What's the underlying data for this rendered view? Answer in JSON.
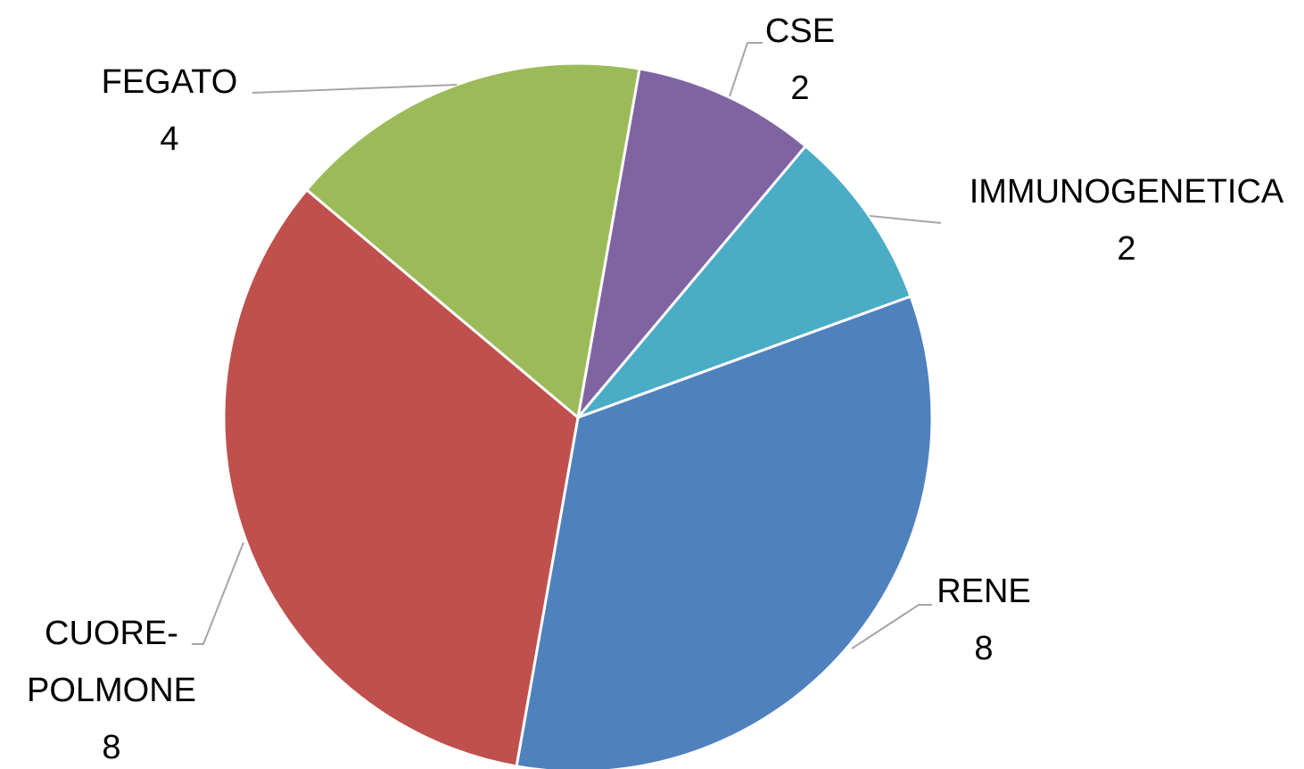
{
  "chart_data": {
    "type": "pie",
    "categories": [
      "CSE",
      "IMMUNOGENETICA",
      "RENE",
      "CUORE-POLMONE",
      "FEGATO"
    ],
    "values": [
      2,
      2,
      8,
      8,
      4
    ],
    "colors": [
      "#8064a2",
      "#4bacc6",
      "#4f81bd",
      "#c0504d",
      "#9bbb59"
    ]
  }
}
